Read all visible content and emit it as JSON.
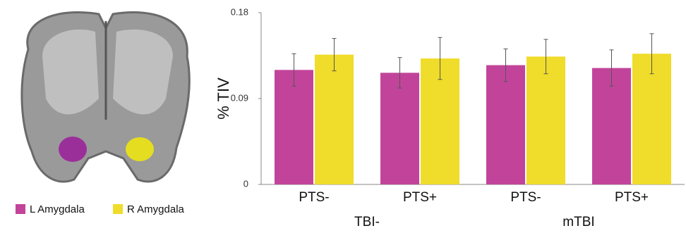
{
  "chart_data": {
    "type": "bar",
    "categories": [
      "PTS-",
      "PTS+",
      "PTS-",
      "PTS+"
    ],
    "groups": [
      {
        "label": "TBI-",
        "span": [
          0,
          1
        ]
      },
      {
        "label": "mTBI",
        "span": [
          2,
          3
        ]
      }
    ],
    "y_label": "% TIV",
    "series": [
      {
        "name": "L Amygdala",
        "color": "#c2449a",
        "values": [
          0.12,
          0.117,
          0.125,
          0.122
        ],
        "errors": [
          0.017,
          0.016,
          0.017,
          0.019
        ]
      },
      {
        "name": "R Amygdala",
        "color": "#f0dc2a",
        "values": [
          0.136,
          0.132,
          0.134,
          0.137
        ],
        "errors": [
          0.017,
          0.022,
          0.018,
          0.021
        ]
      }
    ],
    "ylim": [
      0,
      0.18
    ],
    "yticks": [
      0,
      0.09,
      0.18
    ]
  }
}
